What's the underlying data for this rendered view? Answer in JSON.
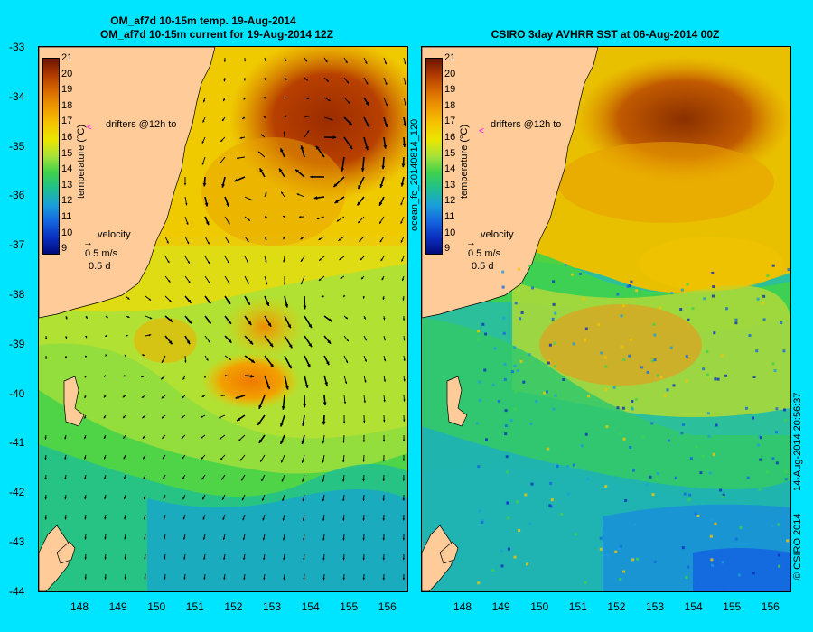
{
  "left_panel": {
    "title_line1": "OM_af7d 10-15m temp. 19-Aug-2014",
    "title_line2": "OM_af7d 10-15m current for 19-Aug-2014 12Z",
    "drifters_label": "drifters @12h to",
    "velocity_label": "velocity",
    "velocity_scale": "0.5 m/s",
    "velocity_time": "0.5 d",
    "colorbar_title": "temperature (°C)"
  },
  "right_panel": {
    "title": "CSIRO 3day AVHRR SST at 06-Aug-2014 00Z",
    "drifters_label": "drifters @12h to",
    "velocity_label": "velocity",
    "velocity_scale": "0.5 m/s",
    "velocity_time": "0.5 d",
    "colorbar_title": "temperature (°C)",
    "side_label": "ocean_fc_20140814_120"
  },
  "footer": {
    "timestamp": "14-Aug-2014 20:56:37",
    "copyright": "© CSIRO 2014"
  },
  "axes": {
    "lat_ticks": [
      "-33",
      "-34",
      "-35",
      "-36",
      "-37",
      "-38",
      "-39",
      "-40",
      "-41",
      "-42",
      "-43",
      "-44"
    ],
    "lon_ticks": [
      "148",
      "149",
      "150",
      "151",
      "152",
      "153",
      "154",
      "155",
      "156"
    ]
  },
  "colorbar": {
    "labels": [
      "21",
      "20",
      "19",
      "18",
      "17",
      "16",
      "15",
      "14",
      "13",
      "12",
      "11",
      "10",
      "9"
    ],
    "colors": [
      "#6b1300",
      "#b03a00",
      "#d96b00",
      "#ee9a00",
      "#f5c400",
      "#e9e600",
      "#a8e23a",
      "#3fd24a",
      "#1fbf8f",
      "#1a9fd8",
      "#1466e0",
      "#0a2fc0",
      "#000a7a"
    ]
  },
  "colors": {
    "background": "#00e5ff",
    "land": "#ffcc99",
    "arrow": "#000000",
    "drifter_marker": "#ff00ff"
  }
}
